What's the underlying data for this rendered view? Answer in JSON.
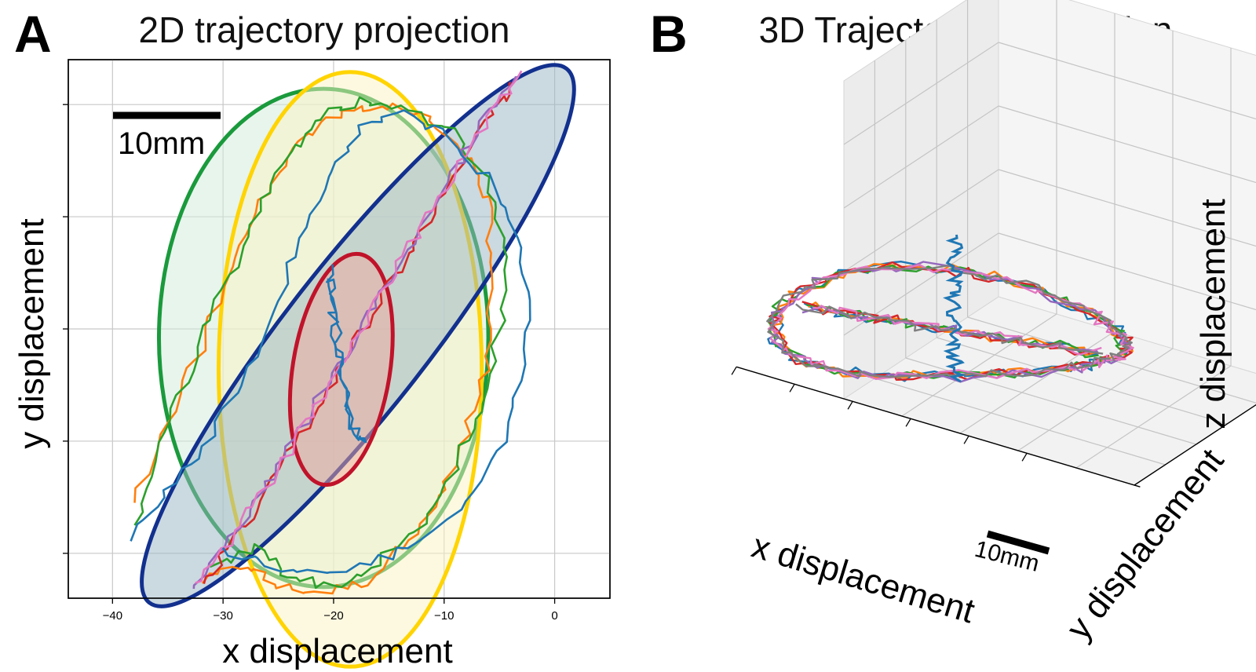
{
  "panel_a": {
    "letter": "A",
    "title": "2D trajectory projection",
    "xlabel": "x displacement",
    "ylabel": "y displacement",
    "scale_bar_label": "10mm"
  },
  "panel_b": {
    "letter": "B",
    "title": "3D Trajectory of Actuation",
    "xlabel": "x displacement",
    "ylabel": "y displacement",
    "zlabel": "z displacement",
    "scale_bar_label": "10mm"
  },
  "chart_data": [
    {
      "type": "line",
      "title": "2D trajectory projection",
      "xlabel": "x displacement",
      "ylabel": "y displacement",
      "xlim": [
        -44,
        5
      ],
      "ylim": [
        -41.5,
        6.5
      ],
      "xticks": [
        -40,
        -30,
        -20,
        -10,
        0
      ],
      "xtick_labels": [
        "−40",
        "−30",
        "−20",
        "−10",
        "0"
      ],
      "yticks": [
        -37.5,
        -27.5,
        -17.5,
        -7.5,
        2.5
      ],
      "grid": true,
      "scale_bar": {
        "label": "10mm",
        "length": 10
      },
      "ellipses": [
        {
          "color": "#1a9a3c",
          "fill": "#d2ecdc",
          "center": [
            -20.9,
            -18.3
          ],
          "rx": 14.9,
          "ry": 22.2,
          "angle": 0
        },
        {
          "color": "#ffd400",
          "fill": "#fbf4c2",
          "center": [
            -18.5,
            -21.1
          ],
          "rx": 11.9,
          "ry": 26.5,
          "angle": 0
        },
        {
          "color": "#12308e",
          "fill": "#98b4c4",
          "center": [
            -17.8,
            -18.1
          ],
          "rx": 6.5,
          "ry": 30.2,
          "angle": 38
        },
        {
          "color": "#c0132a",
          "fill": "#f1a8a0",
          "center": [
            -19.3,
            -21.1
          ],
          "rx": 4.4,
          "ry": 10.4,
          "angle": 9
        }
      ],
      "series": [
        {
          "color": "#ff7f0e",
          "points": [
            [
              -32,
              -40
            ],
            [
              -28,
              -38.5
            ],
            [
              -25,
              -40.5
            ],
            [
              -21,
              -41
            ],
            [
              -17,
              -40
            ],
            [
              -13,
              -36
            ],
            [
              -10,
              -32
            ],
            [
              -8,
              -27
            ],
            [
              -6,
              -20
            ],
            [
              -5.5,
              -13
            ],
            [
              -6,
              -6
            ],
            [
              -8,
              -2
            ],
            [
              -11,
              1
            ],
            [
              -15,
              2.5
            ],
            [
              -19,
              2
            ],
            [
              -23,
              -1
            ],
            [
              -26,
              -5
            ],
            [
              -29,
              -11
            ],
            [
              -32,
              -19
            ],
            [
              -35,
              -26
            ],
            [
              -38,
              -33
            ]
          ]
        },
        {
          "color": "#2ca02c",
          "points": [
            [
              -31,
              -39
            ],
            [
              -27,
              -37
            ],
            [
              -24,
              -39.5
            ],
            [
              -20,
              -40.5
            ],
            [
              -16,
              -38.5
            ],
            [
              -12,
              -35
            ],
            [
              -9,
              -30
            ],
            [
              -7,
              -25
            ],
            [
              -5,
              -18
            ],
            [
              -4.5,
              -10
            ],
            [
              -6,
              -4
            ],
            [
              -9,
              0
            ],
            [
              -13,
              2
            ],
            [
              -17,
              3
            ],
            [
              -21,
              1.5
            ],
            [
              -24,
              -2
            ],
            [
              -27,
              -7
            ],
            [
              -30,
              -14
            ],
            [
              -33,
              -21
            ],
            [
              -36,
              -28
            ],
            [
              -38,
              -35
            ]
          ]
        },
        {
          "color": "#d62728",
          "points": [
            [
              -32,
              -40.5
            ],
            [
              -29,
              -36
            ],
            [
              -26,
              -32
            ],
            [
              -23,
              -27
            ],
            [
              -20,
              -22
            ],
            [
              -17,
              -17
            ],
            [
              -14,
              -12
            ],
            [
              -11,
              -7
            ],
            [
              -8,
              -2
            ],
            [
              -5.5,
              2
            ],
            [
              -4,
              4.5
            ]
          ]
        },
        {
          "color": "#9467bd",
          "points": [
            [
              -33,
              -40.8
            ],
            [
              -30,
              -37
            ],
            [
              -27,
              -33
            ],
            [
              -24,
              -28
            ],
            [
              -21,
              -23
            ],
            [
              -18,
              -18
            ],
            [
              -15,
              -13
            ],
            [
              -12,
              -8
            ],
            [
              -9,
              -3
            ],
            [
              -6,
              1.5
            ],
            [
              -3.5,
              5
            ]
          ]
        },
        {
          "color": "#e377c2",
          "points": [
            [
              -32.5,
              -40.3
            ],
            [
              -29.5,
              -36.5
            ],
            [
              -26.5,
              -32.5
            ],
            [
              -23.5,
              -27.5
            ],
            [
              -20.5,
              -22.5
            ],
            [
              -17.5,
              -17.5
            ],
            [
              -14.5,
              -12.5
            ],
            [
              -11.5,
              -7.5
            ],
            [
              -8.5,
              -2.5
            ],
            [
              -5.5,
              2
            ],
            [
              -3,
              5.5
            ]
          ]
        },
        {
          "color": "#1f77b4",
          "points": [
            [
              -20.5,
              -12
            ],
            [
              -20,
              -15
            ],
            [
              -19.5,
              -19
            ],
            [
              -19,
              -22
            ],
            [
              -18.5,
              -25
            ],
            [
              -17.5,
              -28
            ],
            [
              -18.5,
              -26
            ],
            [
              -19.5,
              -21
            ],
            [
              -20,
              -17
            ],
            [
              -20.5,
              -13
            ]
          ]
        },
        {
          "color": "#1f77b4",
          "points": [
            [
              -38,
              -36
            ],
            [
              -35,
              -32
            ],
            [
              -31,
              -27
            ],
            [
              -27,
              -20
            ],
            [
              -24,
              -12
            ],
            [
              -21,
              -5
            ],
            [
              -18,
              0
            ],
            [
              -14,
              2
            ],
            [
              -10,
              0
            ],
            [
              -6,
              -4
            ],
            [
              -3,
              -10
            ],
            [
              -2.5,
              -18
            ],
            [
              -4,
              -26
            ],
            [
              -8,
              -33
            ],
            [
              -13,
              -37
            ],
            [
              -19,
              -39
            ],
            [
              -25,
              -39
            ],
            [
              -30,
              -37
            ]
          ]
        }
      ]
    },
    {
      "type": "line",
      "title": "3D Trajectory of Actuation",
      "xlabel": "x displacement",
      "ylabel": "y displacement",
      "zlabel": "z displacement",
      "grid": true,
      "scale_bar": {
        "label": "10mm",
        "length": 10
      },
      "series_colors": [
        "#1f77b4",
        "#ff7f0e",
        "#2ca02c",
        "#d62728",
        "#9467bd",
        "#e377c2",
        "#7f7f7f"
      ]
    }
  ]
}
